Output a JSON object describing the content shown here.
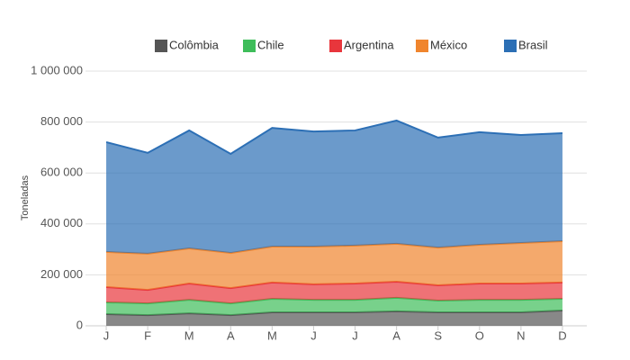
{
  "chart_data": {
    "type": "stacked-area",
    "y_label": "Toneladas",
    "categories": [
      "J",
      "F",
      "M",
      "A",
      "M",
      "J",
      "J",
      "A",
      "S",
      "O",
      "N",
      "D"
    ],
    "series": [
      {
        "name": "Colômbia",
        "color": "#555555",
        "values": [
          46000,
          42000,
          49000,
          42000,
          53000,
          53000,
          53000,
          57000,
          53000,
          53000,
          53000,
          60000
        ]
      },
      {
        "name": "Chile",
        "color": "#3ebd5a",
        "values": [
          46000,
          46000,
          53000,
          46000,
          53000,
          49000,
          49000,
          53000,
          46000,
          49000,
          49000,
          46000
        ]
      },
      {
        "name": "Argentina",
        "color": "#e8363c",
        "values": [
          60000,
          53000,
          64000,
          60000,
          64000,
          61000,
          64000,
          63000,
          60000,
          64000,
          64000,
          64000
        ]
      },
      {
        "name": "México",
        "color": "#f0852d",
        "values": [
          138000,
          142000,
          138000,
          138000,
          141000,
          148000,
          149000,
          149000,
          148000,
          152000,
          159000,
          162000
        ]
      },
      {
        "name": "Brasil",
        "color": "#2c6fb5",
        "values": [
          431000,
          396000,
          463000,
          389000,
          466000,
          452000,
          452000,
          484000,
          432000,
          442000,
          424000,
          424000
        ]
      }
    ],
    "ylim": [
      0,
      1000000
    ],
    "yticks": [
      0,
      {
        "value": 200000,
        "label": "200 000"
      },
      {
        "value": 400000,
        "label": "400 000"
      },
      {
        "value": 600000,
        "label": "600 000"
      },
      {
        "value": 800000,
        "label": "800 000"
      },
      {
        "value": 1000000,
        "label": "1 000 000"
      }
    ],
    "grid": true,
    "legend": "top",
    "fill_opacity": 0.7
  }
}
